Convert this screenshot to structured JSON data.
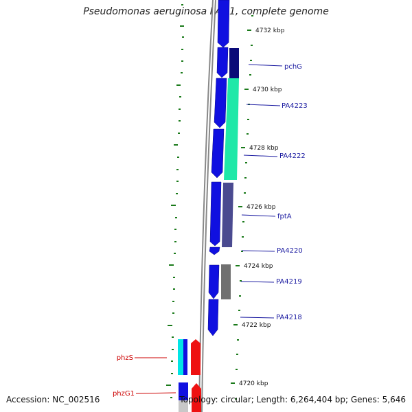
{
  "title": "Pseudomonas aeruginosa PAO1, complete genome",
  "footer": {
    "accession": "Accession: NC_002516",
    "summary": "Topology: circular; Length: 6,264,404 bp; Genes: 5,646"
  },
  "ruler": {
    "ticks": [
      "4732 kbp",
      "4730 kbp",
      "4728 kbp",
      "4726 kbp",
      "4724 kbp",
      "4722 kbp",
      "4720 kbp"
    ]
  },
  "genes": {
    "right": [
      "pchG",
      "PA4223",
      "PA4222",
      "fptA",
      "PA4220",
      "PA4219",
      "PA4218"
    ],
    "left": [
      "phzS",
      "phzG1"
    ]
  },
  "colors": {
    "forward_track": "#1010e0",
    "backbone": "#8c8c8c",
    "ruler_tick": "#1a7a1a",
    "label_right": "#1a1aa0",
    "label_left": "#cc0000",
    "teal_block": "#1fe8a8",
    "dark_navy_block": "#0a0a78",
    "slate_block": "#4a4a90",
    "gray_block": "#707070",
    "cyan_block": "#00e5e5",
    "red_block": "#ee1111"
  }
}
